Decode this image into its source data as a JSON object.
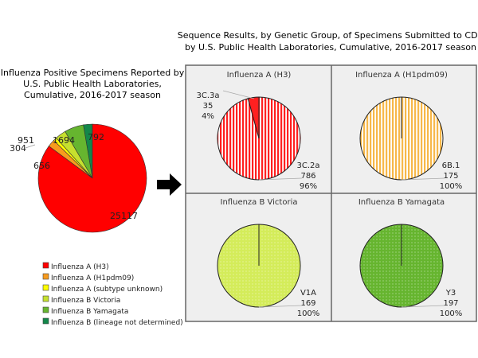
{
  "chart_data": [
    {
      "type": "pie",
      "title": "Influenza Positive Specimens Reported by U.S. Public Health Laboratories, Cumulative, 2016-2017 season",
      "title_lines": [
        "Influenza Positive Specimens Reported by",
        "U.S. Public Health Laboratories,",
        "Cumulative, 2016-2017 season"
      ],
      "legend_position": "bottom",
      "slices": [
        {
          "name": "Influenza A (H3)",
          "value": 25117,
          "color": "#ff0000"
        },
        {
          "name": "Influenza A (H1pdm09)",
          "value": 656,
          "color": "#f79b1e"
        },
        {
          "name": "Influenza A (subtype unknown)",
          "value": 304,
          "color": "#ffff00"
        },
        {
          "name": "Influenza B Victoria",
          "value": 951,
          "color": "#c6e02e"
        },
        {
          "name": "Influenza B Yamagata",
          "value": 1694,
          "color": "#66b52f"
        },
        {
          "name": "Influenza B (lineage not determined)",
          "value": 792,
          "color": "#13874a"
        }
      ]
    },
    {
      "type": "pie",
      "title": "Sequence Results, by Genetic Group, of Specimens Submitted to CDC by U.S. Public Health Laboratories, Cumulative, 2016-2017 season",
      "title_lines": [
        "Sequence Results, by Genetic Group, of Specimens Submitted to CDC",
        "by U.S. Public Health Laboratories, Cumulative, 2016-2017 season"
      ],
      "panels": [
        {
          "title": "Influenza A (H3)",
          "color": "#ff2020",
          "pattern": "stripes",
          "slices": [
            {
              "name": "3C.2a",
              "value": 786,
              "pct": "96%"
            },
            {
              "name": "3C.3a",
              "value": 35,
              "pct": "4%"
            }
          ]
        },
        {
          "title": "Influenza A (H1pdm09)",
          "color": "#f7b84a",
          "pattern": "stripes",
          "slices": [
            {
              "name": "6B.1",
              "value": 175,
              "pct": "100%"
            }
          ]
        },
        {
          "title": "Influenza B Victoria",
          "color": "#d4ec5a",
          "pattern": "dots",
          "slices": [
            {
              "name": "V1A",
              "value": 169,
              "pct": "100%"
            }
          ]
        },
        {
          "title": "Influenza B Yamagata",
          "color": "#66b52f",
          "pattern": "dots",
          "slices": [
            {
              "name": "Y3",
              "value": 197,
              "pct": "100%"
            }
          ]
        }
      ]
    }
  ],
  "icons": {
    "arrow": "right-arrow-icon"
  }
}
